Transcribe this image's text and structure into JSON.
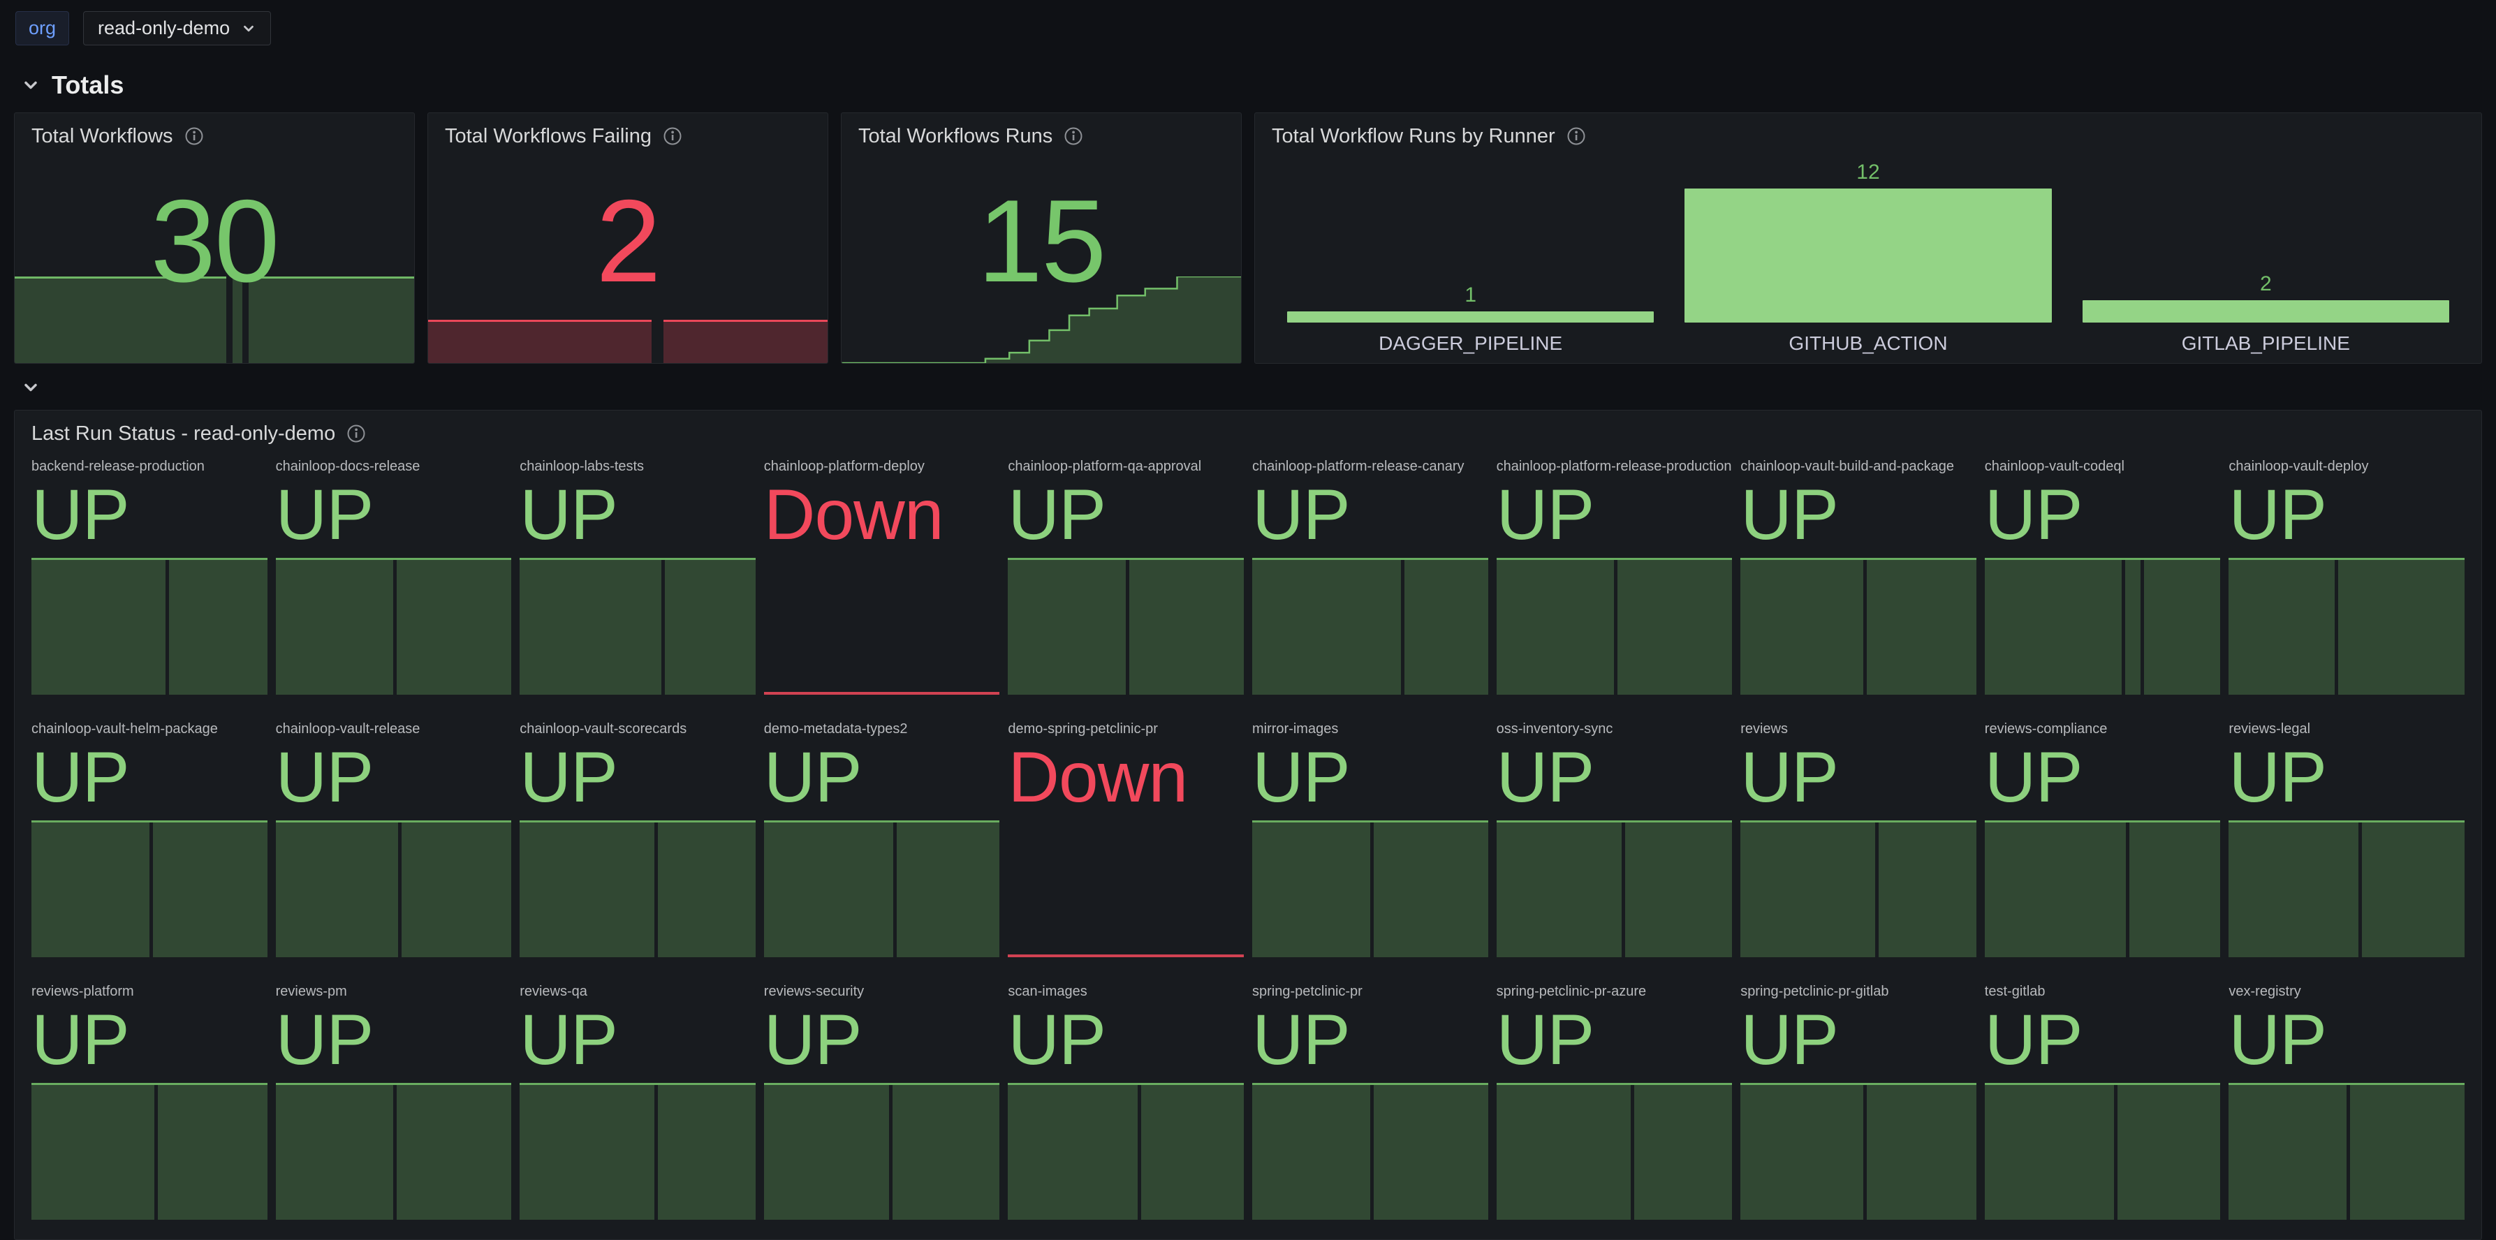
{
  "topbar": {
    "org_chip": "org",
    "dashboard_dropdown": "read-only-demo"
  },
  "sections": {
    "totals": "Totals"
  },
  "colors": {
    "green": "#73bf69",
    "green_light": "#8dd17e",
    "green_fill": "rgba(115,191,105,0.25)",
    "red": "#f2495c",
    "red_fill": "rgba(242,73,92,0.25)",
    "bar": "#94d486",
    "panel_bg": "#181b1f",
    "page_bg": "#0f1115",
    "link_blue": "#6e9fff"
  },
  "panels": {
    "total_workflows": {
      "title": "Total Workflows",
      "value": "30"
    },
    "total_workflows_failing": {
      "title": "Total Workflows Failing",
      "value": "2"
    },
    "total_workflow_runs": {
      "title": "Total Workflows Runs",
      "value": "15"
    },
    "runs_by_runner": {
      "title": "Total Workflow Runs by Runner"
    },
    "last_run_status": {
      "title": "Last Run Status - read-only-demo"
    }
  },
  "chart_data": [
    {
      "id": "total_workflows",
      "type": "area",
      "title": "Total Workflows",
      "current_value": 30,
      "note": "constant series at 30 with two brief dropouts",
      "segments_pct": [
        [
          0,
          53
        ],
        [
          54.5,
          57
        ],
        [
          58.5,
          100
        ]
      ],
      "color": "green"
    },
    {
      "id": "total_workflows_failing",
      "type": "area",
      "title": "Total Workflows Failing",
      "current_value": 2,
      "note": "constant low series with one gap near the middle",
      "segments_pct": [
        [
          0,
          56
        ],
        [
          59,
          100
        ]
      ],
      "color": "red"
    },
    {
      "id": "total_workflow_runs",
      "type": "step-area",
      "title": "Total Workflows Runs",
      "current_value": 15,
      "note": "cumulative step increase from 0 to 15, x/y in percent of plot",
      "points_pct": [
        [
          0,
          0
        ],
        [
          36,
          0
        ],
        [
          36,
          5
        ],
        [
          42,
          5
        ],
        [
          42,
          12
        ],
        [
          47,
          12
        ],
        [
          47,
          26
        ],
        [
          52,
          26
        ],
        [
          52,
          38
        ],
        [
          57,
          38
        ],
        [
          57,
          55
        ],
        [
          62,
          55
        ],
        [
          62,
          63
        ],
        [
          69,
          63
        ],
        [
          69,
          78
        ],
        [
          76,
          78
        ],
        [
          76,
          86
        ],
        [
          84,
          86
        ],
        [
          84,
          100
        ],
        [
          100,
          100
        ]
      ],
      "color": "green"
    },
    {
      "id": "runs_by_runner",
      "type": "bar",
      "title": "Total Workflow Runs by Runner",
      "categories": [
        "DAGGER_PIPELINE",
        "GITHUB_ACTION",
        "GITLAB_PIPELINE"
      ],
      "values": [
        1,
        12,
        2
      ],
      "ylim": [
        0,
        12
      ],
      "legend": "off",
      "value_labels": "above bars, green"
    },
    {
      "id": "last_run_status",
      "type": "stat-grid",
      "title": "Last Run Status - read-only-demo",
      "columns": 10,
      "tiles": [
        {
          "name": "backend-release-production",
          "status": "UP",
          "gaps_pct": [
            57
          ]
        },
        {
          "name": "chainloop-docs-release",
          "status": "UP",
          "gaps_pct": [
            50
          ]
        },
        {
          "name": "chainloop-labs-tests",
          "status": "UP",
          "gaps_pct": [
            60
          ]
        },
        {
          "name": "chainloop-platform-deploy",
          "status": "Down",
          "gaps_pct": []
        },
        {
          "name": "chainloop-platform-qa-approval",
          "status": "UP",
          "gaps_pct": [
            50
          ]
        },
        {
          "name": "chainloop-platform-release-canary",
          "status": "UP",
          "gaps_pct": [
            63
          ]
        },
        {
          "name": "chainloop-platform-release-production",
          "status": "UP",
          "gaps_pct": [
            50
          ]
        },
        {
          "name": "chainloop-vault-build-and-package",
          "status": "UP",
          "gaps_pct": [
            52
          ]
        },
        {
          "name": "chainloop-vault-codeql",
          "status": "UP",
          "gaps_pct": [
            58,
            66
          ]
        },
        {
          "name": "chainloop-vault-deploy",
          "status": "UP",
          "gaps_pct": [
            45
          ]
        },
        {
          "name": "chainloop-vault-helm-package",
          "status": "UP",
          "gaps_pct": [
            50
          ]
        },
        {
          "name": "chainloop-vault-release",
          "status": "UP",
          "gaps_pct": [
            52
          ]
        },
        {
          "name": "chainloop-vault-scorecards",
          "status": "UP",
          "gaps_pct": [
            57
          ]
        },
        {
          "name": "demo-metadata-types2",
          "status": "UP",
          "gaps_pct": [
            55
          ]
        },
        {
          "name": "demo-spring-petclinic-pr",
          "status": "Down",
          "gaps_pct": []
        },
        {
          "name": "mirror-images",
          "status": "UP",
          "gaps_pct": [
            50
          ]
        },
        {
          "name": "oss-inventory-sync",
          "status": "UP",
          "gaps_pct": [
            53
          ]
        },
        {
          "name": "reviews",
          "status": "UP",
          "gaps_pct": [
            57
          ]
        },
        {
          "name": "reviews-compliance",
          "status": "UP",
          "gaps_pct": [
            60
          ]
        },
        {
          "name": "reviews-legal",
          "status": "UP",
          "gaps_pct": [
            55
          ]
        },
        {
          "name": "reviews-platform",
          "status": "UP",
          "gaps_pct": [
            52
          ]
        },
        {
          "name": "reviews-pm",
          "status": "UP",
          "gaps_pct": [
            50
          ]
        },
        {
          "name": "reviews-qa",
          "status": "UP",
          "gaps_pct": [
            57
          ]
        },
        {
          "name": "reviews-security",
          "status": "UP",
          "gaps_pct": [
            53
          ]
        },
        {
          "name": "scan-images",
          "status": "UP",
          "gaps_pct": [
            55
          ]
        },
        {
          "name": "spring-petclinic-pr",
          "status": "UP",
          "gaps_pct": [
            50
          ]
        },
        {
          "name": "spring-petclinic-pr-azure",
          "status": "UP",
          "gaps_pct": [
            57
          ]
        },
        {
          "name": "spring-petclinic-pr-gitlab",
          "status": "UP",
          "gaps_pct": [
            52
          ]
        },
        {
          "name": "test-gitlab",
          "status": "UP",
          "gaps_pct": [
            55
          ]
        },
        {
          "name": "vex-registry",
          "status": "UP",
          "gaps_pct": [
            50
          ]
        }
      ]
    }
  ]
}
